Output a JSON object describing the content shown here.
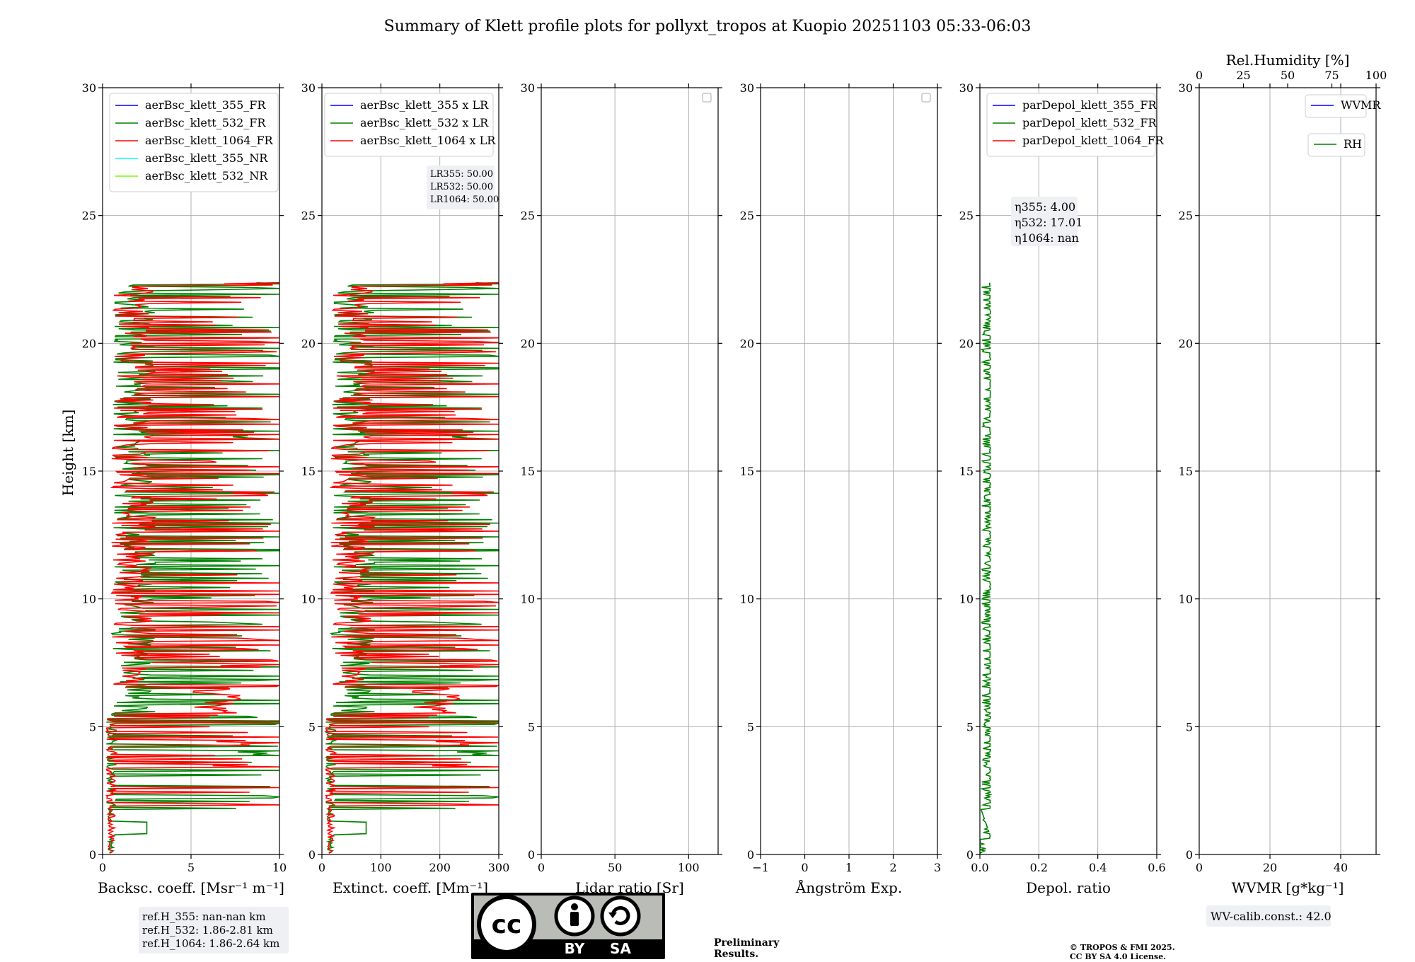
{
  "title": "Summary of Klett profile plots for pollyxt_tropos at Kuopio 20251103 05:33-06:03",
  "ylabel": "Height [km]",
  "colors": {
    "c355": "#0000ff",
    "c532": "#008000",
    "c1064": "#ff0000",
    "c355nr": "#00ffff",
    "c532nr": "#7cfc00",
    "prelim": "#ff3333"
  },
  "chart_data": [
    {
      "type": "line",
      "id": "backscatter",
      "xlabel": "Backsc. coeff. [Msr⁻¹ m⁻¹]",
      "xlim": [
        0,
        10
      ],
      "ylim": [
        0,
        30
      ],
      "xticks": [
        "0",
        "5",
        "10"
      ],
      "yticks": [
        "0",
        "5",
        "10",
        "15",
        "20",
        "25",
        "30"
      ],
      "legend": {
        "placement": "top-left",
        "entries": [
          {
            "label": "aerBsc_klett_355_FR",
            "color": "#0000ff"
          },
          {
            "label": "aerBsc_klett_532_FR",
            "color": "#008000"
          },
          {
            "label": "aerBsc_klett_1064_FR",
            "color": "#ff0000"
          },
          {
            "label": "aerBsc_klett_355_NR",
            "color": "#00ffff"
          },
          {
            "label": "aerBsc_klett_532_NR",
            "color": "#7cfc00"
          }
        ]
      },
      "series": [
        {
          "name": "aerBsc_klett_532_FR",
          "color": "#008000",
          "seed": 11,
          "scale": 1.0
        },
        {
          "name": "aerBsc_klett_1064_FR",
          "color": "#ff0000",
          "seed": 23,
          "scale": 1.0
        }
      ]
    },
    {
      "type": "line",
      "id": "extinction",
      "xlabel": "Extinct. coeff. [Mm⁻¹]",
      "xlim": [
        0,
        300
      ],
      "ylim": [
        0,
        30
      ],
      "xticks": [
        "0",
        "100",
        "200",
        "300"
      ],
      "yticks": [
        "0",
        "5",
        "10",
        "15",
        "20",
        "25",
        "30"
      ],
      "legend": {
        "placement": "top-right",
        "entries": [
          {
            "label": "aerBsc_klett_355 x LR",
            "color": "#0000ff"
          },
          {
            "label": "aerBsc_klett_532 x LR",
            "color": "#008000"
          },
          {
            "label": "aerBsc_klett_1064 x LR",
            "color": "#ff0000"
          }
        ]
      },
      "annotation": [
        "LR355: 50.00",
        "LR532: 50.00",
        "LR1064: 50.00"
      ],
      "series": [
        {
          "name": "aerBsc_klett_532 x LR",
          "color": "#008000",
          "seed": 11,
          "scale": 30.0
        },
        {
          "name": "aerBsc_klett_1064 x LR",
          "color": "#ff0000",
          "seed": 23,
          "scale": 30.0
        }
      ]
    },
    {
      "type": "line",
      "id": "lidar-ratio",
      "xlabel": "Lidar ratio [Sr]",
      "xlim": [
        0,
        120
      ],
      "ylim": [
        0,
        30
      ],
      "xticks": [
        "0",
        "50",
        "100"
      ],
      "yticks": [
        "0",
        "5",
        "10",
        "15",
        "20",
        "25",
        "30"
      ],
      "series": []
    },
    {
      "type": "line",
      "id": "angstrom",
      "xlabel": "Ångström Exp.",
      "xlim": [
        -1,
        3
      ],
      "ylim": [
        0,
        30
      ],
      "xticks": [
        "−1",
        "0",
        "1",
        "2",
        "3"
      ],
      "yticks": [
        "0",
        "5",
        "10",
        "15",
        "20",
        "25",
        "30"
      ],
      "series": []
    },
    {
      "type": "line",
      "id": "depol",
      "xlabel": "Depol. ratio",
      "xlim": [
        0,
        0.6
      ],
      "ylim": [
        0,
        30
      ],
      "xticks": [
        "0.0",
        "0.2",
        "0.4",
        "0.6"
      ],
      "yticks": [
        "0",
        "5",
        "10",
        "15",
        "20",
        "25",
        "30"
      ],
      "legend": {
        "placement": "top-left",
        "entries": [
          {
            "label": "parDepol_klett_355_FR",
            "color": "#0000ff"
          },
          {
            "label": "parDepol_klett_532_FR",
            "color": "#008000"
          },
          {
            "label": "parDepol_klett_1064_FR",
            "color": "#ff0000"
          }
        ]
      },
      "annotation": [
        "η355: 4.00",
        "η532: 17.01",
        "η1064: nan"
      ],
      "series": [
        {
          "name": "parDepol_klett_532_FR",
          "color": "#008000",
          "seed": 37,
          "scale": 0.06
        }
      ]
    },
    {
      "type": "line",
      "id": "wvmr",
      "xlabel": "WVMR [g*kg⁻¹]",
      "xlim": [
        0,
        50
      ],
      "ylim": [
        0,
        30
      ],
      "xticks": [
        "0",
        "20",
        "40"
      ],
      "yticks": [
        "0",
        "5",
        "10",
        "15",
        "20",
        "25",
        "30"
      ],
      "top_axis": {
        "label": "Rel.Humidity [%]",
        "xlim": [
          0,
          100
        ],
        "ticks": [
          "0",
          "25",
          "50",
          "75",
          "100"
        ]
      },
      "legend": {
        "placement": "top-right",
        "entries": [
          {
            "label": "WVMR",
            "color": "#0000ff"
          },
          {
            "label": "RH",
            "color": "#008000"
          }
        ]
      },
      "annotation": [
        "WV-calib.const.: 42.0"
      ],
      "series": []
    }
  ],
  "refH": [
    "ref.H_355: nan-nan km",
    "ref.H_532: 1.86-2.81 km",
    "ref.H_1064: 1.86-2.64 km"
  ],
  "license": {
    "by": "BY",
    "sa": "SA",
    "cc": "cc"
  },
  "preliminary": [
    "Preliminary",
    "Results."
  ],
  "copyright": [
    "© TROPOS & FMI 2025.",
    "CC BY SA 4.0 License."
  ]
}
